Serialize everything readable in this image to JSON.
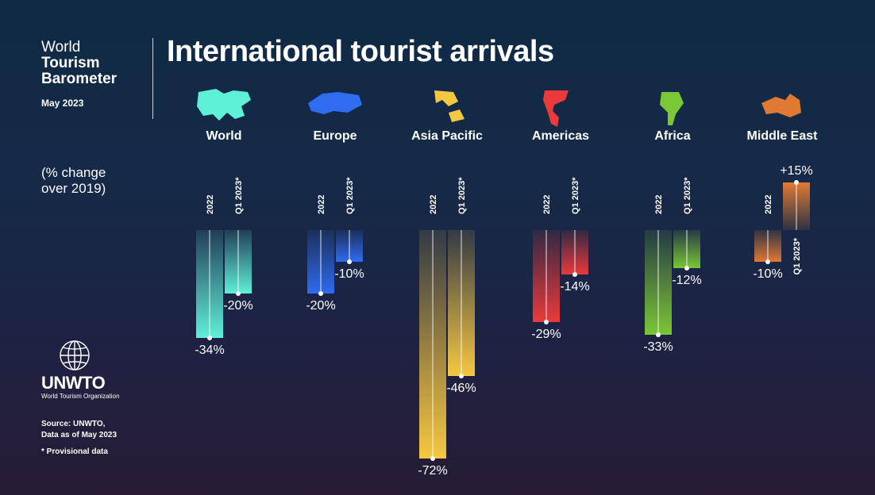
{
  "header": {
    "brand_line1": "World",
    "brand_line2": "Tourism",
    "brand_line3": "Barometer",
    "date": "May 2023",
    "title": "International tourist arrivals"
  },
  "subtitle": "(% change over 2019)",
  "logo": {
    "text": "UNWTO",
    "subtext": "World Tourism Organization"
  },
  "source": {
    "line1": "Source: UNWTO,",
    "line2": "Data as of May 2023"
  },
  "footnote": "*  Provisional data",
  "chart_data": {
    "type": "bar",
    "title": "International tourist arrivals",
    "subtitle": "(% change over 2019)",
    "categories": [
      "World",
      "Europe",
      "Asia Pacific",
      "Americas",
      "Africa",
      "Middle East"
    ],
    "series": [
      {
        "name": "2022",
        "values": [
          -34,
          -20,
          -72,
          -29,
          -33,
          -10
        ],
        "labels": [
          "-34%",
          "-20%",
          "-72%",
          "-29%",
          "-33%",
          "-10%"
        ]
      },
      {
        "name": "Q1 2023*",
        "values": [
          -20,
          -10,
          -46,
          -14,
          -12,
          15
        ],
        "labels": [
          "-20%",
          "-10%",
          "-46%",
          "-14%",
          "-12%",
          "+15%"
        ]
      }
    ],
    "colors": {
      "World": "#5ff0d8",
      "Europe": "#2f6cf0",
      "Asia Pacific": "#f5c842",
      "Americas": "#ea3a3a",
      "Africa": "#7bc736",
      "Middle East": "#e07a33"
    },
    "xlabel": "",
    "ylabel": "",
    "ylim": [
      -72,
      15
    ]
  }
}
